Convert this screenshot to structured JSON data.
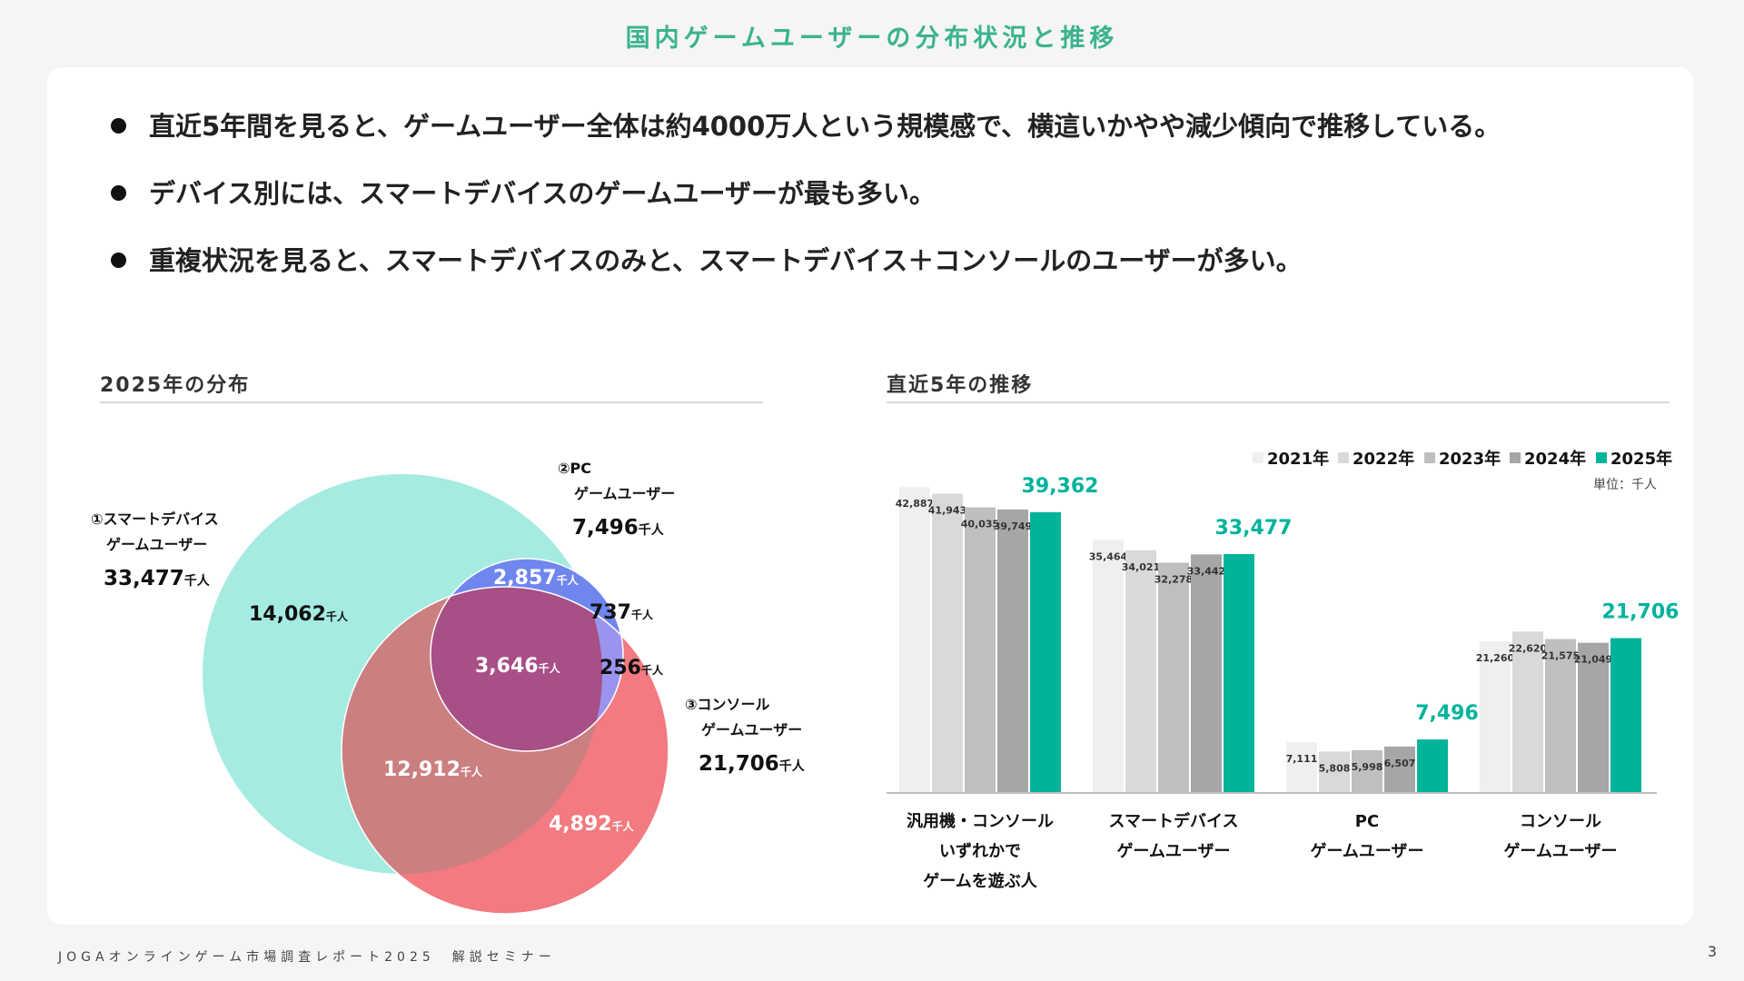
{
  "slide_title": "国内ゲームユーザーの分布状況と推移",
  "bullets": [
    "直近5年間を見ると、ゲームユーザー全体は約4000万人という規模感で、横這いかやや減少傾向で推移している。",
    "デバイス別には、スマートデバイスのゲームユーザーが最も多い。",
    "重複状況を見ると、スマートデバイスのみと、スマートデバイス＋コンソールのユーザーが多い。"
  ],
  "colors": {
    "title": "#3bb38e",
    "smart": "#a5ebe2",
    "pc": "#6f86ee",
    "console": "#f27a80",
    "smart_console": "#cc7f80",
    "pc_console_tip": "#9a94ee",
    "all_three": "#a84f86",
    "accent": "#00b39b"
  },
  "venn": {
    "section_title": "2025年の分布",
    "unit": "千人",
    "sets": [
      {
        "id": "smart",
        "name_line1": "①スマートデバイス",
        "name_line2": "ゲームユーザー",
        "total": "33,477"
      },
      {
        "id": "pc",
        "name_line1": "②PC",
        "name_line2": "ゲームユーザー",
        "total": "7,496"
      },
      {
        "id": "console",
        "name_line1": "③コンソール",
        "name_line2": "ゲームユーザー",
        "total": "21,706"
      }
    ],
    "regions": [
      {
        "id": "smart_only",
        "value": "14,062"
      },
      {
        "id": "smart_pc",
        "value": "2,857"
      },
      {
        "id": "pc_only",
        "value": "737"
      },
      {
        "id": "all_three",
        "value": "3,646"
      },
      {
        "id": "pc_console",
        "value": "256"
      },
      {
        "id": "smart_console",
        "value": "12,912"
      },
      {
        "id": "console_only",
        "value": "4,892"
      }
    ]
  },
  "chart_data": {
    "type": "bar",
    "title": "直近5年の推移",
    "unit_label": "単位：千人",
    "xlabel": "",
    "ylabel": "",
    "ylim": [
      0,
      48000
    ],
    "categories": [
      [
        "汎用機・コンソール",
        "いずれかで",
        "ゲームを遊ぶ人"
      ],
      [
        "スマートデバイス",
        "ゲームユーザー"
      ],
      [
        "PC",
        "ゲームユーザー"
      ],
      [
        "コンソール",
        "ゲームユーザー"
      ]
    ],
    "series": [
      {
        "name": "2021年",
        "color": "#efefef",
        "values": [
          42887,
          35464,
          7111,
          21260
        ],
        "labels": [
          "42,887",
          "35,464",
          "7,111",
          "21,260"
        ]
      },
      {
        "name": "2022年",
        "color": "#d9d9d9",
        "values": [
          41943,
          34021,
          5808,
          22620
        ],
        "labels": [
          "41,943",
          "34,021",
          "5,808",
          "22,620"
        ]
      },
      {
        "name": "2023年",
        "color": "#bfbfbf",
        "values": [
          40035,
          32278,
          5998,
          21575
        ],
        "labels": [
          "40,035",
          "32,278",
          "5,998",
          "21,575"
        ]
      },
      {
        "name": "2024年",
        "color": "#a6a6a6",
        "values": [
          39749,
          33442,
          6507,
          21049
        ],
        "labels": [
          "39,749",
          "33,442",
          "6,507",
          "21,049"
        ]
      },
      {
        "name": "2025年",
        "color": "#00b39b",
        "values": [
          39362,
          33477,
          7496,
          21706
        ],
        "labels": [
          "39,362",
          "33,477",
          "7,496",
          "21,706"
        ]
      }
    ]
  },
  "footer": "JOGAオンラインゲーム市場調査レポート2025　解説セミナー",
  "page_number": "3"
}
